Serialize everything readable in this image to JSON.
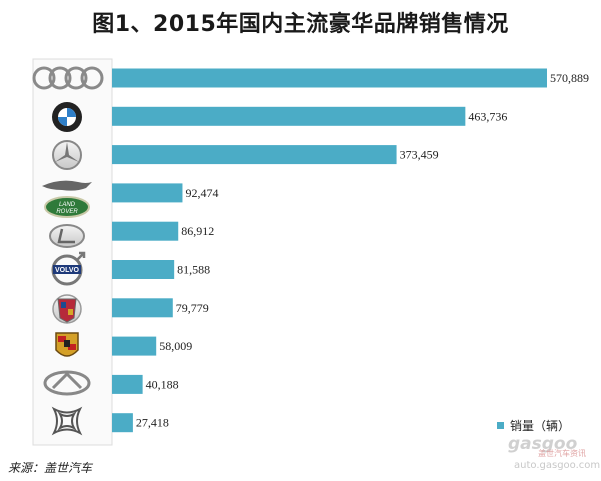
{
  "title": "图1、2015年国内主流豪华品牌销售情况",
  "source": "来源：盖世汽车",
  "legend_label": "销量（辆）",
  "watermark": {
    "brand": "gasgoo",
    "sub": "盖世汽车资讯",
    "url": "auto.gasgoo.com"
  },
  "colors": {
    "bar": "#4bacc6"
  },
  "chart_data": {
    "type": "bar",
    "orientation": "horizontal",
    "title": "图1、2015年国内主流豪华品牌销售情况",
    "categories": [
      "audi-logo",
      "bmw-logo",
      "mercedes-logo",
      "jaguar-landrover-logo",
      "lexus-logo",
      "volvo-logo",
      "cadillac-logo",
      "porsche-logo",
      "infiniti-logo",
      "ds-logo"
    ],
    "series": [
      {
        "name": "销量（辆）",
        "values": [
          570889,
          463736,
          373459,
          92474,
          86912,
          81588,
          79779,
          58009,
          40188,
          27418
        ]
      }
    ],
    "data_labels": [
      "570,889",
      "463,736",
      "373,459",
      "92,474",
      "86,912",
      "81,588",
      "79,779",
      "58,009",
      "40,188",
      "27,418"
    ],
    "xlim": [
      0,
      600000
    ],
    "grid": false,
    "legend_position": "bottom-right"
  }
}
